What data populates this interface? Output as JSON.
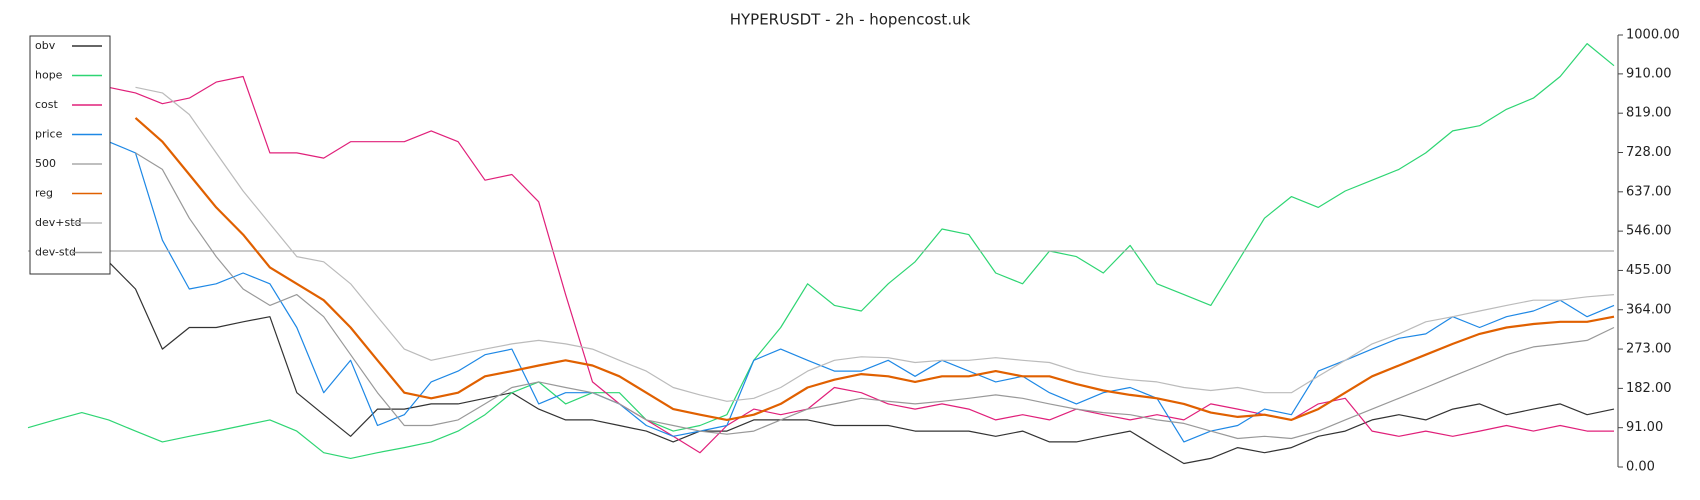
{
  "chart_data": {
    "type": "line",
    "title": "HYPERUSDT - 2h - hopencost.uk",
    "categories": [
      null,
      null,
      null,
      null,
      null,
      null,
      null,
      null,
      null,
      null,
      null,
      null,
      null,
      null,
      null,
      null,
      null,
      null,
      null,
      null,
      null,
      null,
      null,
      null,
      null,
      null,
      null,
      null,
      null,
      null,
      null,
      null,
      null,
      null,
      null,
      null,
      null,
      null,
      null,
      null,
      null,
      null,
      null,
      null,
      null,
      null,
      null,
      null,
      null,
      null,
      null,
      null,
      null,
      null,
      null,
      null,
      null,
      null,
      null,
      null
    ],
    "ylim": [
      0,
      1000
    ],
    "yticks": [
      {
        "value": 0,
        "label": "0.00"
      },
      {
        "value": 91,
        "label": "91.00"
      },
      {
        "value": 182,
        "label": "182.00"
      },
      {
        "value": 273,
        "label": "273.00"
      },
      {
        "value": 364,
        "label": "364.00"
      },
      {
        "value": 455,
        "label": "455.00"
      },
      {
        "value": 546,
        "label": "546.00"
      },
      {
        "value": 637,
        "label": "637.00"
      },
      {
        "value": 728,
        "label": "728.00"
      },
      {
        "value": 819,
        "label": "819.00"
      },
      {
        "value": 910,
        "label": "910.00"
      },
      {
        "value": 1000,
        "label": "1000.00"
      }
    ],
    "legend": "upper left",
    "series": [
      {
        "name": "obv",
        "color": "#333333",
        "values": [
          null,
          null,
          null,
          475,
          412,
          273,
          323,
          323,
          336,
          348,
          172,
          121,
          71,
          134,
          134,
          146,
          146,
          159,
          172,
          134,
          109,
          109,
          96,
          83,
          58,
          83,
          83,
          109,
          109,
          109,
          96,
          96,
          96,
          83,
          83,
          83,
          71,
          83,
          58,
          58,
          71,
          83,
          45,
          8,
          20,
          45,
          33,
          45,
          71,
          83,
          109,
          121,
          109,
          134,
          146,
          121,
          134,
          146,
          121,
          134
        ]
      },
      {
        "name": "hope",
        "color": "#2ed573",
        "values": [
          91,
          109,
          126,
          109,
          83,
          58,
          71,
          83,
          96,
          109,
          83,
          33,
          20,
          33,
          45,
          58,
          83,
          121,
          172,
          197,
          146,
          172,
          172,
          109,
          83,
          96,
          121,
          247,
          323,
          424,
          374,
          361,
          424,
          475,
          551,
          538,
          449,
          424,
          500,
          487,
          449,
          513,
          424,
          399,
          374,
          475,
          576,
          626,
          601,
          639,
          664,
          689,
          727,
          778,
          790,
          828,
          854,
          904,
          980,
          929
        ]
      },
      {
        "name": "cost",
        "color": "#e0207a",
        "values": [
          null,
          null,
          null,
          879,
          866,
          841,
          854,
          891,
          904,
          727,
          727,
          715,
          753,
          753,
          753,
          778,
          753,
          664,
          677,
          614,
          399,
          197,
          146,
          109,
          71,
          33,
          96,
          134,
          121,
          134,
          184,
          172,
          146,
          134,
          146,
          134,
          109,
          121,
          109,
          134,
          121,
          109,
          121,
          109,
          146,
          134,
          121,
          109,
          146,
          159,
          83,
          71,
          83,
          71,
          83,
          96,
          83,
          96,
          83,
          83
        ]
      },
      {
        "name": "price",
        "color": "#1e88e5",
        "values": [
          null,
          null,
          null,
          753,
          727,
          525,
          412,
          424,
          449,
          424,
          323,
          172,
          247,
          96,
          121,
          197,
          222,
          260,
          273,
          146,
          172,
          172,
          146,
          96,
          71,
          83,
          96,
          247,
          273,
          247,
          222,
          222,
          247,
          210,
          247,
          222,
          197,
          210,
          172,
          146,
          172,
          184,
          159,
          58,
          83,
          96,
          134,
          121,
          222,
          247,
          273,
          298,
          308,
          348,
          323,
          348,
          361,
          386,
          348,
          374
        ]
      },
      {
        "name": "500",
        "color": "#aaaaaa",
        "values": [
          500,
          500,
          500,
          500,
          500,
          500,
          500,
          500,
          500,
          500,
          500,
          500,
          500,
          500,
          500,
          500,
          500,
          500,
          500,
          500,
          500,
          500,
          500,
          500,
          500,
          500,
          500,
          500,
          500,
          500,
          500,
          500,
          500,
          500,
          500,
          500,
          500,
          500,
          500,
          500,
          500,
          500,
          500,
          500,
          500,
          500,
          500,
          500,
          500,
          500,
          500,
          500,
          500,
          500,
          500,
          500,
          500,
          500,
          500,
          500
        ]
      },
      {
        "name": "reg",
        "color": "#e06000",
        "values": [
          null,
          null,
          null,
          null,
          808,
          753,
          677,
          601,
          538,
          462,
          424,
          386,
          323,
          247,
          172,
          159,
          172,
          210,
          222,
          235,
          247,
          235,
          210,
          172,
          134,
          121,
          109,
          121,
          146,
          184,
          202,
          215,
          210,
          197,
          210,
          210,
          222,
          210,
          210,
          192,
          177,
          167,
          159,
          146,
          126,
          116,
          121,
          109,
          134,
          172,
          210,
          235,
          260,
          285,
          308,
          323,
          331,
          336,
          336,
          348
        ]
      },
      {
        "name": "dev+std",
        "color": "#bbbbbb",
        "values": [
          null,
          null,
          null,
          null,
          879,
          866,
          816,
          727,
          639,
          563,
          487,
          475,
          424,
          348,
          273,
          247,
          260,
          273,
          285,
          293,
          285,
          273,
          247,
          222,
          184,
          167,
          152,
          159,
          184,
          222,
          247,
          255,
          253,
          242,
          247,
          247,
          253,
          247,
          242,
          222,
          210,
          202,
          197,
          184,
          177,
          184,
          172,
          172,
          210,
          247,
          285,
          308,
          336,
          348,
          361,
          374,
          386,
          386,
          394,
          399
        ]
      },
      {
        "name": "dev-std",
        "color": "#999999",
        "values": [
          null,
          null,
          null,
          null,
          727,
          689,
          576,
          487,
          412,
          374,
          399,
          348,
          260,
          172,
          96,
          96,
          109,
          146,
          184,
          197,
          184,
          172,
          146,
          109,
          96,
          83,
          76,
          83,
          109,
          134,
          146,
          159,
          152,
          146,
          152,
          159,
          167,
          159,
          146,
          134,
          126,
          121,
          109,
          101,
          83,
          66,
          71,
          66,
          83,
          109,
          134,
          159,
          184,
          210,
          235,
          260,
          278,
          285,
          293,
          323
        ]
      }
    ]
  }
}
